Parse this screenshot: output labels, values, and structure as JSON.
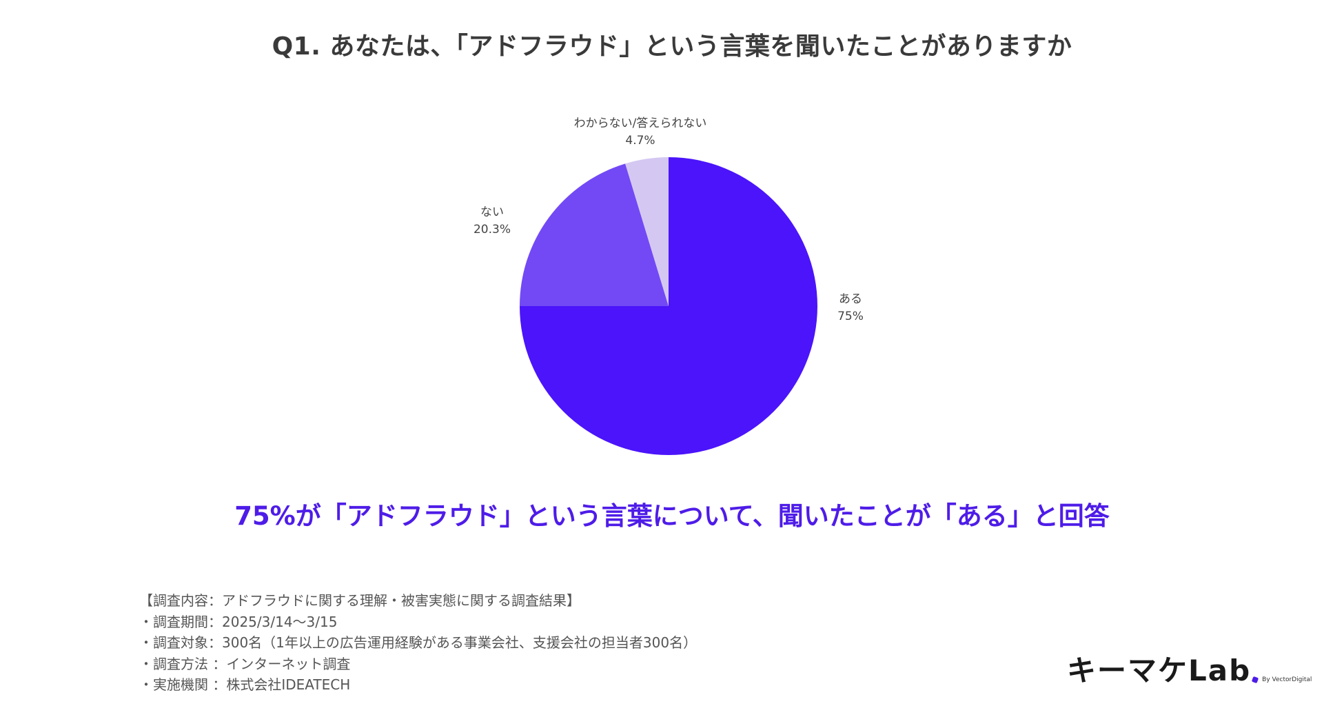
{
  "title": "Q1. あなたは、「アドフラウド」という言葉を聞いたことがありますか",
  "chart_data": {
    "type": "pie",
    "title": "Q1. あなたは、「アドフラウド」という言葉を聞いたことがありますか",
    "slices": [
      {
        "label": "ある",
        "value": 75,
        "display": "75%",
        "color": "#4b14fa"
      },
      {
        "label": "ない",
        "value": 20.3,
        "display": "20.3%",
        "color": "#7249f5"
      },
      {
        "label": "わからない/答えられない",
        "value": 4.7,
        "display": "4.7%",
        "color": "#d4c8f2"
      }
    ],
    "start": "12 o'clock",
    "direction": "clockwise"
  },
  "headline": "75%が「アドフラウド」という言葉について、聞いたことが「ある」と回答",
  "survey_notes": [
    "【調査内容：アドフラウドに関する理解・被害実態に関する調査結果】",
    "・調査期間：2025/3/14〜3/15",
    "・調査対象：300名（1年以上の広告運用経験がある事業会社、支援会社の担当者300名）",
    "・調査方法 ：インターネット調査",
    "・実施機関 ：株式会社IDEATECH"
  ],
  "logo": {
    "main": "キーマケLab",
    "sub": "By VectorDigital"
  }
}
